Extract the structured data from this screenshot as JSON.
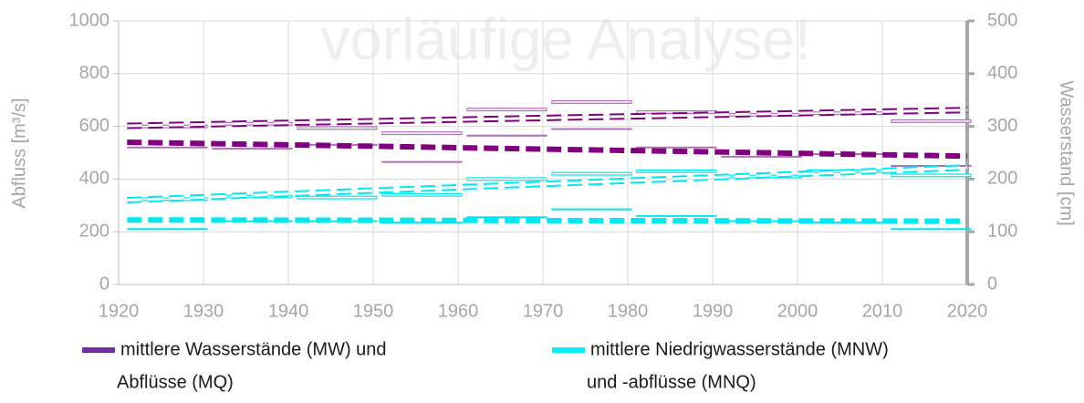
{
  "chart_data": {
    "type": "line",
    "watermark": "vorläufige Analyse!",
    "ylabel": "Abfluss [m³/s]",
    "y2label": "Wasserstand [cm]",
    "xlim": [
      1920,
      2020
    ],
    "xticks": [
      1920,
      1930,
      1940,
      1950,
      1960,
      1970,
      1980,
      1990,
      2000,
      2010,
      2020
    ],
    "ylim": [
      0,
      1000
    ],
    "yticks": [
      0,
      200,
      400,
      600,
      800,
      1000
    ],
    "y2lim": [
      0,
      500
    ],
    "y2ticks": [
      0,
      100,
      200,
      300,
      400,
      500
    ],
    "grid": true,
    "legend": [
      {
        "label": [
          "mittlere Wasserstände (MW) und",
          "Abflüsse (MQ)"
        ],
        "color": "#7030a0"
      },
      {
        "label": [
          "mittlere Niedrigwasserstände (MNW)",
          "und -abflüsse (MNQ)"
        ],
        "color": "#00f0f0"
      }
    ],
    "series": [
      {
        "style": "decadal-hollow",
        "axis": "y2",
        "color": "#b070b8",
        "x": [
          1921,
          1931,
          1941,
          1951,
          1961,
          1971,
          1981,
          1991,
          2001,
          2011
        ],
        "values": [
          300,
          305,
          297,
          287,
          332,
          346,
          327,
          322,
          325,
          310
        ]
      },
      {
        "style": "decadal",
        "axis": "y",
        "color": "#b070b8",
        "x": [
          1921,
          1931,
          1941,
          1951,
          1961,
          1971,
          1981,
          1991,
          2001,
          2011
        ],
        "values": [
          520,
          515,
          530,
          465,
          565,
          590,
          520,
          485,
          495,
          450
        ]
      },
      {
        "style": "decadal-hollow",
        "axis": "y2",
        "color": "#00e8f0",
        "x": [
          1921,
          1931,
          1941,
          1951,
          1961,
          1971,
          1981,
          1991,
          2001,
          2011
        ],
        "values": [
          162,
          167,
          165,
          170,
          200,
          210,
          215,
          205,
          215,
          207
        ]
      },
      {
        "style": "decadal",
        "axis": "y",
        "color": "#00e8f0",
        "x": [
          1921,
          1931,
          1941,
          1951,
          1961,
          1971,
          1981,
          1991,
          2001,
          2011
        ],
        "values": [
          210,
          240,
          240,
          235,
          255,
          285,
          260,
          240,
          235,
          210
        ]
      },
      {
        "style": "trend-hollow",
        "axis": "y2",
        "color": "#800080",
        "x": [
          1921,
          2020
        ],
        "values": [
          301,
          331
        ]
      },
      {
        "style": "trend",
        "axis": "y",
        "color": "#800080",
        "x": [
          1921,
          2020
        ],
        "values": [
          540,
          487
        ]
      },
      {
        "style": "trend-hollow",
        "axis": "y2",
        "color": "#00e8f0",
        "x": [
          1921,
          2020
        ],
        "values": [
          160,
          222
        ]
      },
      {
        "style": "trend",
        "axis": "y",
        "color": "#00e8f0",
        "x": [
          1921,
          2020
        ],
        "values": [
          245,
          240
        ]
      }
    ]
  }
}
